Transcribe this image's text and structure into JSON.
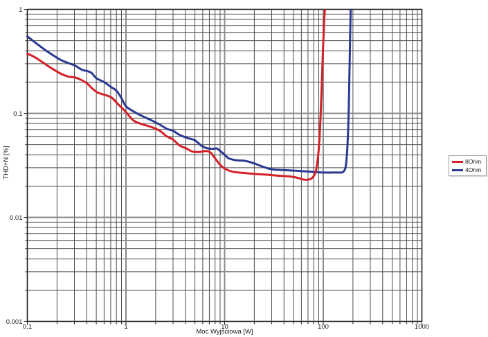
{
  "figure": {
    "background": "#ffffff",
    "frame_color": "#222222",
    "grid_minor_color": "#4c4c4c",
    "grid_major_color": "#8b8b8b",
    "tick_text_color": "#1b1b1b",
    "legend_border_color": "#9b9b9b"
  },
  "legend": {
    "items": [
      {
        "label": "8Ohm"
      },
      {
        "label": "4Ohm"
      }
    ]
  },
  "chart_data": {
    "type": "line",
    "title": "",
    "xlabel": "Moc Wyjściowa [W]",
    "ylabel": "THD+N [%]",
    "xscale": "log",
    "yscale": "log",
    "xlim": [
      0.1,
      1000
    ],
    "ylim": [
      0.001,
      1
    ],
    "grid": "log major+minor, both axes",
    "legend_position": "outside-right",
    "x_ticks": {
      "values": [
        0.1,
        1,
        10,
        100,
        1000
      ],
      "labels": [
        "0.1",
        "1",
        "10",
        "100",
        "1000"
      ]
    },
    "y_ticks": {
      "values": [
        1,
        0.1,
        0.01,
        0.001
      ],
      "labels": [
        "1",
        "0.1",
        "0.01",
        "0.001"
      ]
    },
    "series": [
      {
        "name": "8Ohm",
        "color": "#d32127",
        "points": [
          [
            0.1,
            0.375
          ],
          [
            0.12,
            0.345
          ],
          [
            0.15,
            0.3
          ],
          [
            0.18,
            0.268
          ],
          [
            0.22,
            0.24
          ],
          [
            0.26,
            0.226
          ],
          [
            0.3,
            0.222
          ],
          [
            0.34,
            0.213
          ],
          [
            0.4,
            0.195
          ],
          [
            0.46,
            0.172
          ],
          [
            0.52,
            0.158
          ],
          [
            0.62,
            0.15
          ],
          [
            0.72,
            0.141
          ],
          [
            0.85,
            0.12
          ],
          [
            1.0,
            0.103
          ],
          [
            1.2,
            0.085
          ],
          [
            1.5,
            0.078
          ],
          [
            1.8,
            0.074
          ],
          [
            2.2,
            0.068
          ],
          [
            2.6,
            0.06
          ],
          [
            3.0,
            0.056
          ],
          [
            3.5,
            0.049
          ],
          [
            4.0,
            0.0465
          ],
          [
            4.7,
            0.043
          ],
          [
            5.5,
            0.0425
          ],
          [
            6.5,
            0.0435
          ],
          [
            7.2,
            0.042
          ],
          [
            8.0,
            0.037
          ],
          [
            9.0,
            0.032
          ],
          [
            10,
            0.0295
          ],
          [
            12,
            0.0275
          ],
          [
            15,
            0.0268
          ],
          [
            20,
            0.0262
          ],
          [
            26,
            0.0258
          ],
          [
            34,
            0.0252
          ],
          [
            45,
            0.0248
          ],
          [
            55,
            0.024
          ],
          [
            65,
            0.023
          ],
          [
            75,
            0.0235
          ],
          [
            82,
            0.026
          ],
          [
            86,
            0.031
          ],
          [
            90,
            0.045
          ],
          [
            93,
            0.075
          ],
          [
            96,
            0.16
          ],
          [
            99,
            0.38
          ],
          [
            102,
            0.75
          ],
          [
            104,
            1.0
          ],
          [
            105,
            1.1
          ]
        ]
      },
      {
        "name": "4Ohm",
        "color": "#2b3990",
        "points": [
          [
            0.1,
            0.55
          ],
          [
            0.12,
            0.48
          ],
          [
            0.15,
            0.41
          ],
          [
            0.18,
            0.365
          ],
          [
            0.22,
            0.325
          ],
          [
            0.26,
            0.305
          ],
          [
            0.3,
            0.29
          ],
          [
            0.36,
            0.262
          ],
          [
            0.4,
            0.256
          ],
          [
            0.45,
            0.244
          ],
          [
            0.5,
            0.218
          ],
          [
            0.6,
            0.2
          ],
          [
            0.7,
            0.18
          ],
          [
            0.8,
            0.165
          ],
          [
            0.9,
            0.14
          ],
          [
            1.0,
            0.117
          ],
          [
            1.2,
            0.104
          ],
          [
            1.5,
            0.093
          ],
          [
            1.8,
            0.086
          ],
          [
            2.2,
            0.078
          ],
          [
            2.6,
            0.071
          ],
          [
            3.0,
            0.068
          ],
          [
            3.5,
            0.062
          ],
          [
            4.2,
            0.058
          ],
          [
            5.0,
            0.055
          ],
          [
            5.8,
            0.049
          ],
          [
            6.5,
            0.0465
          ],
          [
            7.5,
            0.0455
          ],
          [
            8.3,
            0.046
          ],
          [
            9.0,
            0.0435
          ],
          [
            10,
            0.04
          ],
          [
            11,
            0.037
          ],
          [
            13,
            0.0355
          ],
          [
            16,
            0.035
          ],
          [
            20,
            0.033
          ],
          [
            25,
            0.0305
          ],
          [
            30,
            0.029
          ],
          [
            40,
            0.0285
          ],
          [
            55,
            0.028
          ],
          [
            75,
            0.0275
          ],
          [
            100,
            0.027
          ],
          [
            130,
            0.027
          ],
          [
            150,
            0.027
          ],
          [
            160,
            0.0275
          ],
          [
            168,
            0.03
          ],
          [
            173,
            0.038
          ],
          [
            177,
            0.055
          ],
          [
            181,
            0.1
          ],
          [
            184,
            0.22
          ],
          [
            187,
            0.5
          ],
          [
            189,
            0.85
          ],
          [
            191,
            1.1
          ]
        ]
      }
    ]
  }
}
